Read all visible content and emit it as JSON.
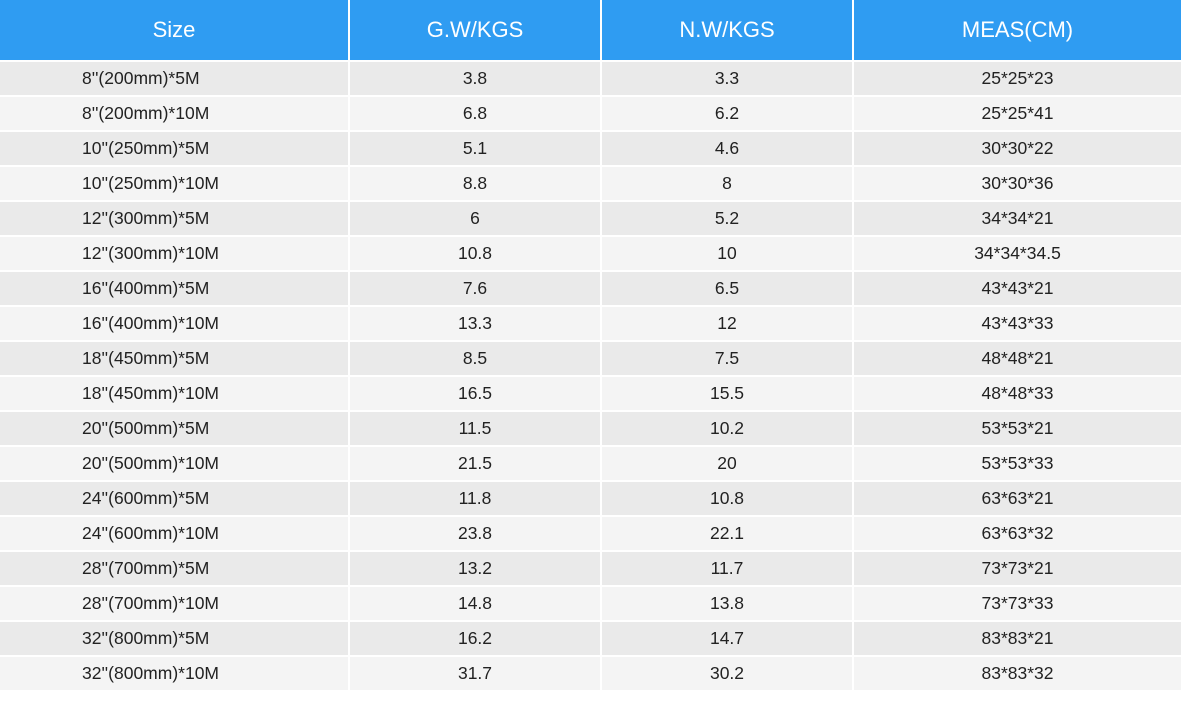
{
  "table": {
    "headers": [
      "Size",
      "G.W/KGS",
      "N.W/KGS",
      "MEAS(CM)"
    ],
    "rows": [
      [
        "8''(200mm)*5M",
        "3.8",
        "3.3",
        "25*25*23"
      ],
      [
        "8''(200mm)*10M",
        "6.8",
        "6.2",
        "25*25*41"
      ],
      [
        "10''(250mm)*5M",
        "5.1",
        "4.6",
        "30*30*22"
      ],
      [
        "10''(250mm)*10M",
        "8.8",
        "8",
        "30*30*36"
      ],
      [
        "12''(300mm)*5M",
        "6",
        "5.2",
        "34*34*21"
      ],
      [
        "12''(300mm)*10M",
        "10.8",
        "10",
        "34*34*34.5"
      ],
      [
        "16''(400mm)*5M",
        "7.6",
        "6.5",
        "43*43*21"
      ],
      [
        "16''(400mm)*10M",
        "13.3",
        "12",
        "43*43*33"
      ],
      [
        "18''(450mm)*5M",
        "8.5",
        "7.5",
        "48*48*21"
      ],
      [
        "18''(450mm)*10M",
        "16.5",
        "15.5",
        "48*48*33"
      ],
      [
        "20''(500mm)*5M",
        "11.5",
        "10.2",
        "53*53*21"
      ],
      [
        "20''(500mm)*10M",
        "21.5",
        "20",
        "53*53*33"
      ],
      [
        "24''(600mm)*5M",
        "11.8",
        "10.8",
        "63*63*21"
      ],
      [
        "24''(600mm)*10M",
        "23.8",
        "22.1",
        "63*63*32"
      ],
      [
        "28''(700mm)*5M",
        "13.2",
        "11.7",
        "73*73*21"
      ],
      [
        "28''(700mm)*10M",
        "14.8",
        "13.8",
        "73*73*33"
      ],
      [
        "32''(800mm)*5M",
        "16.2",
        "14.7",
        "83*83*21"
      ],
      [
        "32''(800mm)*10M",
        "31.7",
        "30.2",
        "83*83*32"
      ]
    ]
  },
  "colors": {
    "header_bg": "#2f9cf2",
    "header_text": "#ffffff",
    "row_odd_bg": "#eaeaea",
    "row_even_bg": "#f4f4f4",
    "body_text": "#222222"
  }
}
